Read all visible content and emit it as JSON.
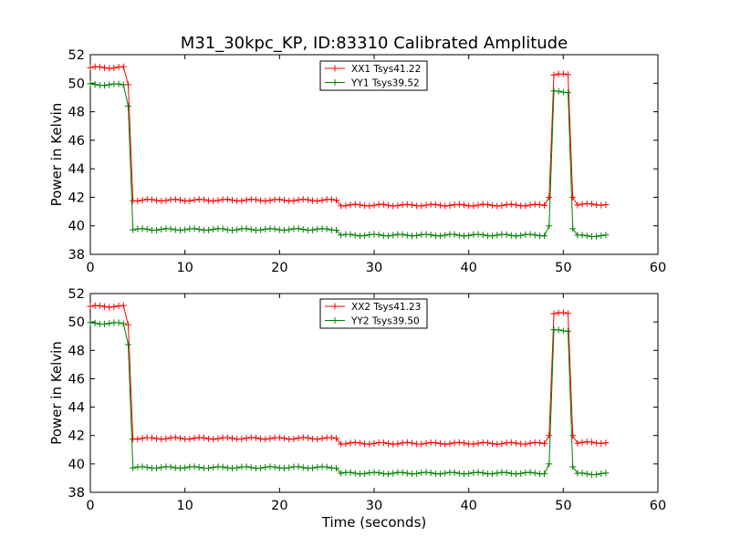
{
  "colors": {
    "xx": "#ff0000",
    "yy": "#008000",
    "axis": "#000000",
    "background": "#ffffff"
  },
  "chart_data": [
    {
      "type": "line",
      "title": "M31_30kpc_KP, ID:83310 Calibrated Amplitude",
      "xlabel": "",
      "ylabel": "Power in Kelvin",
      "xlim": [
        0,
        60
      ],
      "ylim": [
        38,
        52
      ],
      "xticks": [
        0,
        10,
        20,
        30,
        40,
        50,
        60
      ],
      "yticks": [
        38,
        40,
        42,
        44,
        46,
        48,
        50,
        52
      ],
      "grid": false,
      "legend_position": "top-center",
      "marker": "+",
      "sample_interval_seconds": 0.5,
      "series": [
        {
          "name": "XX1 Tsys41.22",
          "color": "#ff0000",
          "segments": [
            {
              "x_start": 0.0,
              "x_end": 3.5,
              "value": 51.1
            },
            {
              "x_start": 4.0,
              "x_end": 4.0,
              "value": 49.9
            },
            {
              "x_start": 4.5,
              "x_end": 26.0,
              "value": 41.8
            },
            {
              "x_start": 26.5,
              "x_end": 48.0,
              "value": 41.45
            },
            {
              "x_start": 48.5,
              "x_end": 48.5,
              "value": 42.0
            },
            {
              "x_start": 49.0,
              "x_end": 50.5,
              "value": 50.6
            },
            {
              "x_start": 51.0,
              "x_end": 51.0,
              "value": 42.0
            },
            {
              "x_start": 51.5,
              "x_end": 54.5,
              "value": 41.5
            }
          ]
        },
        {
          "name": "YY1 Tsys39.52",
          "color": "#008000",
          "segments": [
            {
              "x_start": 0.0,
              "x_end": 3.5,
              "value": 49.9
            },
            {
              "x_start": 4.0,
              "x_end": 4.0,
              "value": 48.4
            },
            {
              "x_start": 4.5,
              "x_end": 26.0,
              "value": 39.75
            },
            {
              "x_start": 26.5,
              "x_end": 48.0,
              "value": 39.35
            },
            {
              "x_start": 48.5,
              "x_end": 48.5,
              "value": 40.0
            },
            {
              "x_start": 49.0,
              "x_end": 50.5,
              "value": 49.4
            },
            {
              "x_start": 51.0,
              "x_end": 51.0,
              "value": 39.8
            },
            {
              "x_start": 51.5,
              "x_end": 54.5,
              "value": 39.3
            }
          ]
        }
      ]
    },
    {
      "type": "line",
      "title": "",
      "xlabel": "Time (seconds)",
      "ylabel": "Power in Kelvin",
      "xlim": [
        0,
        60
      ],
      "ylim": [
        38,
        52
      ],
      "xticks": [
        0,
        10,
        20,
        30,
        40,
        50,
        60
      ],
      "yticks": [
        38,
        40,
        42,
        44,
        46,
        48,
        50,
        52
      ],
      "grid": false,
      "legend_position": "top-center",
      "marker": "+",
      "sample_interval_seconds": 0.5,
      "series": [
        {
          "name": "XX2 Tsys41.23",
          "color": "#ff0000",
          "segments": [
            {
              "x_start": 0.0,
              "x_end": 3.5,
              "value": 51.1
            },
            {
              "x_start": 4.0,
              "x_end": 4.0,
              "value": 49.8
            },
            {
              "x_start": 4.5,
              "x_end": 26.0,
              "value": 41.8
            },
            {
              "x_start": 26.5,
              "x_end": 48.0,
              "value": 41.45
            },
            {
              "x_start": 48.5,
              "x_end": 48.5,
              "value": 42.0
            },
            {
              "x_start": 49.0,
              "x_end": 50.5,
              "value": 50.6
            },
            {
              "x_start": 51.0,
              "x_end": 51.0,
              "value": 42.0
            },
            {
              "x_start": 51.5,
              "x_end": 54.5,
              "value": 41.5
            }
          ]
        },
        {
          "name": "YY2 Tsys39.50",
          "color": "#008000",
          "segments": [
            {
              "x_start": 0.0,
              "x_end": 3.5,
              "value": 49.9
            },
            {
              "x_start": 4.0,
              "x_end": 4.0,
              "value": 48.4
            },
            {
              "x_start": 4.5,
              "x_end": 26.0,
              "value": 39.75
            },
            {
              "x_start": 26.5,
              "x_end": 48.0,
              "value": 39.35
            },
            {
              "x_start": 48.5,
              "x_end": 48.5,
              "value": 40.0
            },
            {
              "x_start": 49.0,
              "x_end": 50.5,
              "value": 49.4
            },
            {
              "x_start": 51.0,
              "x_end": 51.0,
              "value": 39.8
            },
            {
              "x_start": 51.5,
              "x_end": 54.5,
              "value": 39.3
            }
          ]
        }
      ]
    }
  ]
}
